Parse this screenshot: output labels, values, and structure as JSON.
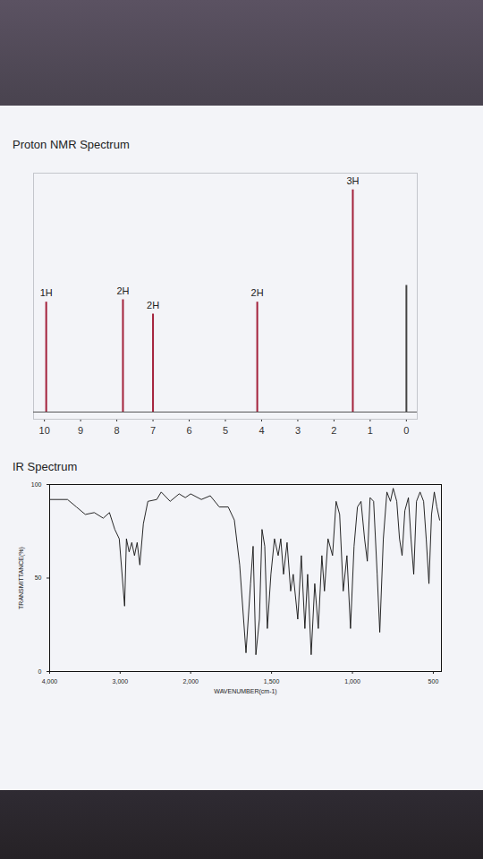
{
  "chart_data": [
    {
      "type": "stem",
      "title": "Proton NMR Spectrum",
      "x": [
        9.95,
        7.83,
        7.0,
        4.12,
        1.48,
        0
      ],
      "values": [
        46,
        47,
        41,
        46,
        93,
        53
      ],
      "annotations": [
        "1H",
        "2H",
        "2H",
        "2H",
        "3H",
        null
      ],
      "colors": [
        "#a3203a",
        "#a3203a",
        "#a3203a",
        "#a3203a",
        "#a3203a",
        "#444444"
      ],
      "xlim": [
        10.3,
        -0.3
      ],
      "xticks": [
        10,
        9,
        8,
        7,
        6,
        5,
        4,
        3,
        2,
        1,
        0
      ],
      "ylim": [
        -3,
        100
      ],
      "tick_labels": "x"
    },
    {
      "type": "line",
      "title": "IR Spectrum",
      "x_label": "WAVENUMBER(cm-1)",
      "y_label": "TRANSMITTANCE(%)",
      "color": "#111111",
      "x": [
        4000,
        3747,
        3620,
        3494,
        3367,
        3240,
        3152,
        3076,
        3013,
        2937,
        2911,
        2873,
        2835,
        2797,
        2759,
        2721,
        2671,
        2607,
        2481,
        2418,
        2291,
        2164,
        2076,
        2000,
        1934,
        1879,
        1823,
        1768,
        1730,
        1697,
        1658,
        1630,
        1614,
        1597,
        1575,
        1559,
        1542,
        1526,
        1504,
        1482,
        1459,
        1443,
        1426,
        1404,
        1382,
        1366,
        1338,
        1316,
        1294,
        1277,
        1255,
        1233,
        1211,
        1189,
        1173,
        1151,
        1123,
        1101,
        1079,
        1057,
        1034,
        1012,
        990,
        969,
        947,
        925,
        908,
        891,
        869,
        847,
        831,
        809,
        787,
        765,
        748,
        726,
        709,
        693,
        676,
        654,
        638,
        621,
        604,
        582,
        560,
        544,
        527,
        511,
        494,
        478,
        461
      ],
      "values": [
        92,
        92,
        88,
        84,
        85,
        82,
        85,
        76,
        71,
        35,
        71,
        64,
        69,
        62,
        69,
        57,
        79,
        91,
        92,
        96,
        91,
        95,
        93,
        95,
        92,
        94,
        88,
        88,
        81,
        57,
        10,
        47,
        67,
        9,
        28,
        76,
        67,
        23,
        52,
        71,
        62,
        71,
        52,
        69,
        43,
        52,
        28,
        62,
        23,
        52,
        9,
        47,
        23,
        62,
        43,
        71,
        62,
        91,
        84,
        43,
        62,
        23,
        67,
        88,
        91,
        71,
        59,
        93,
        91,
        52,
        21,
        71,
        96,
        91,
        98,
        91,
        71,
        62,
        86,
        93,
        71,
        52,
        91,
        96,
        91,
        71,
        47,
        84,
        96,
        88,
        81
      ],
      "xlim": [
        4000,
        450
      ],
      "xticks": [
        4000,
        3000,
        2000,
        1500,
        1000,
        500
      ],
      "ylim": [
        0,
        100
      ],
      "yticks": [
        0,
        50,
        100
      ]
    }
  ]
}
